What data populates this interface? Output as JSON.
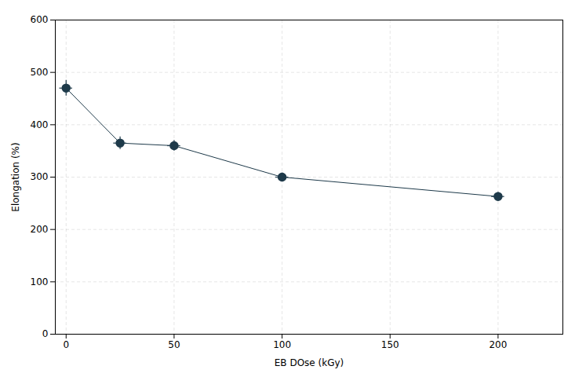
{
  "chart_data": {
    "type": "line",
    "x": [
      0,
      25,
      50,
      100,
      200
    ],
    "values": [
      470,
      365,
      360,
      300,
      263
    ],
    "yerr": [
      15,
      12,
      10,
      8,
      8
    ],
    "xerr": [
      3,
      3,
      3,
      3,
      3
    ],
    "xlabel": "EB DOse (kGy)",
    "ylabel": "Elongation (%)",
    "xlim": [
      -5,
      230
    ],
    "ylim": [
      0,
      600
    ],
    "xticks": [
      0,
      50,
      100,
      150,
      200
    ],
    "yticks": [
      0,
      100,
      200,
      300,
      400,
      500,
      600
    ],
    "color": "#1e3a4a",
    "marker": "circle",
    "grid": true
  }
}
